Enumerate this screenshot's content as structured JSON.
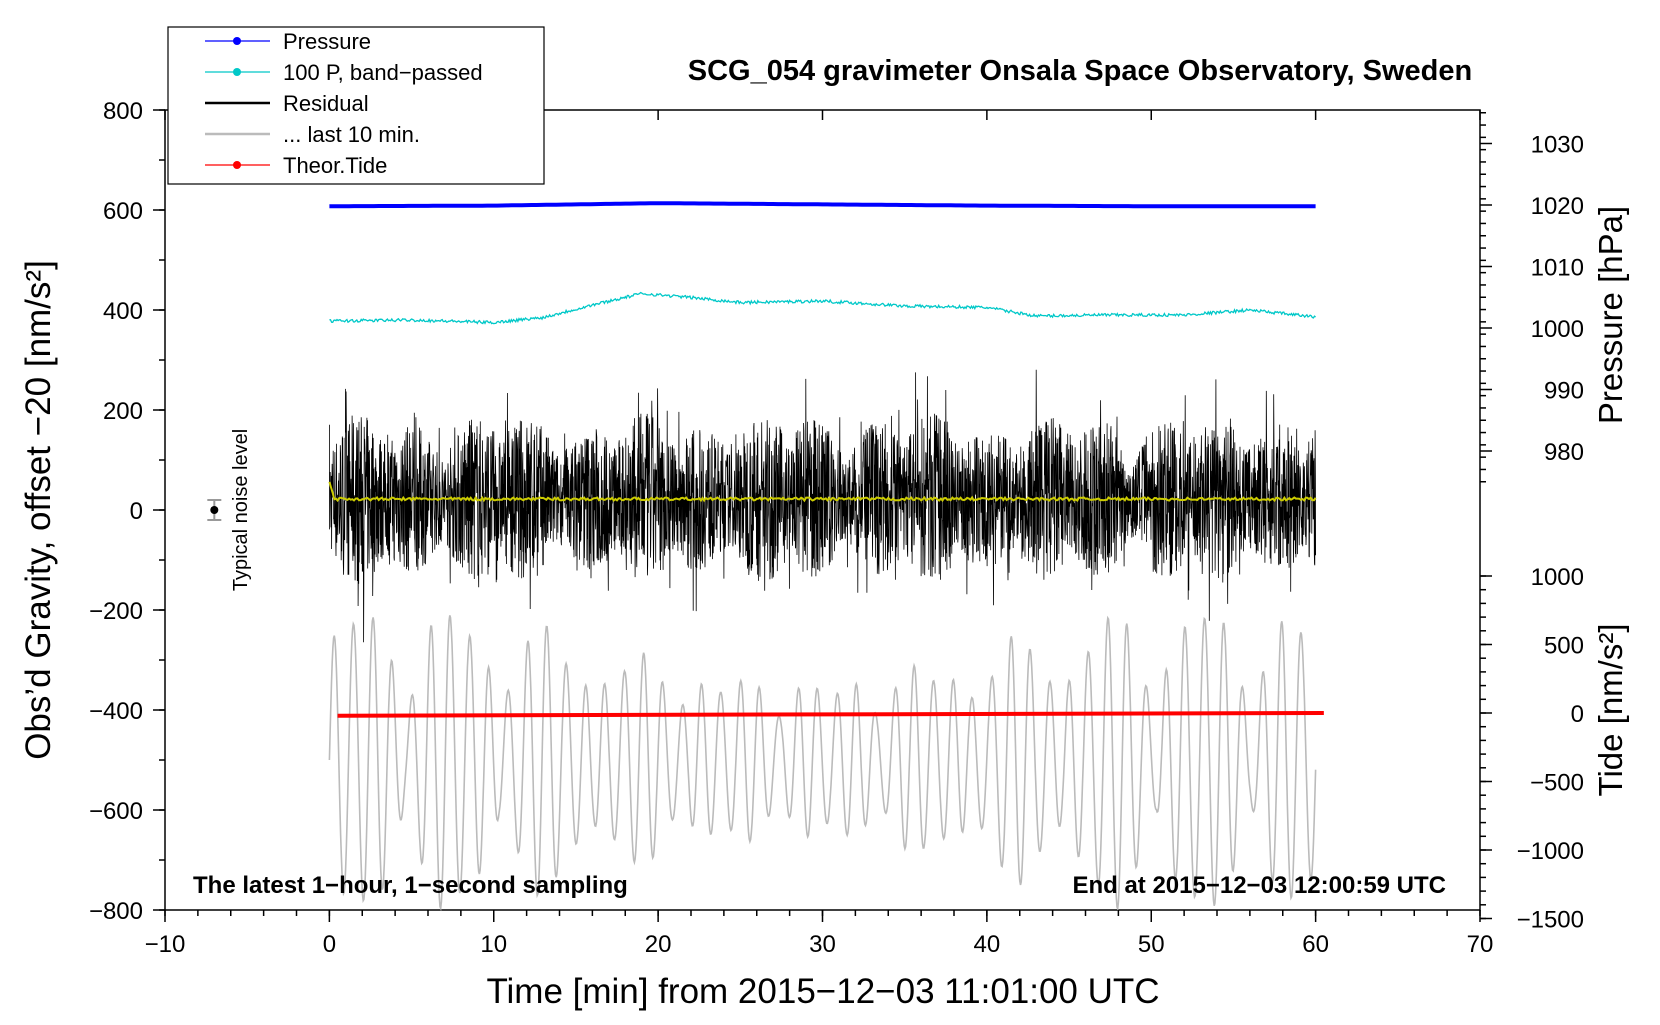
{
  "chart_data": {
    "type": "line",
    "title": "SCG_054 gravimeter Onsala Space Observatory, Sweden",
    "xlabel": "Time [min] from 2015−12−03 11:01:00 UTC",
    "ylabel_left": "Obs’d Gravity, offset −20 [nm/s²]",
    "ylabel_pressure": "Pressure [hPa]",
    "ylabel_tide": "Tide [nm/s²]",
    "xlim": [
      -10,
      70
    ],
    "ylim": [
      -800,
      800
    ],
    "x_ticks": [
      -10,
      0,
      10,
      20,
      30,
      40,
      50,
      60,
      70
    ],
    "x_tick_labels": [
      "−10",
      "0",
      "10",
      "20",
      "30",
      "40",
      "50",
      "60",
      "70"
    ],
    "y_ticks": [
      -800,
      -600,
      -400,
      -200,
      0,
      200,
      400,
      600,
      800
    ],
    "y_tick_labels": [
      "−800",
      "−600",
      "−400",
      "−200",
      "0",
      "200",
      "400",
      "600",
      "800"
    ],
    "pressure_axis": {
      "ticks": [
        980,
        990,
        1000,
        1010,
        1020,
        1030
      ],
      "tick_labels": [
        "980",
        "990",
        "1000",
        "1010",
        "1020",
        "1030"
      ]
    },
    "tide_axis": {
      "ticks": [
        -1500,
        -1000,
        -500,
        0,
        500,
        1000
      ],
      "tick_labels": [
        "−1500",
        "−1000",
        "−500",
        "0",
        "500",
        "1000"
      ]
    },
    "legend": {
      "placement": "top-left",
      "entries": [
        {
          "label": "Pressure",
          "color": "#0000ff",
          "marker": true
        },
        {
          "label": "100 P, band−passed",
          "color": "#00c8c8",
          "marker": true
        },
        {
          "label": "Residual",
          "color": "#000000",
          "marker": false
        },
        {
          "label": "... last 10 min.",
          "color": "#bbbbbb",
          "marker": false
        },
        {
          "label": "Theor.Tide",
          "color": "#ff0000",
          "marker": true
        }
      ]
    },
    "annotations": {
      "noise": "Typical noise level",
      "bottom_left": "The latest 1−hour, 1−second sampling",
      "bottom_right": "End at 2015−12−03 12:00:59 UTC"
    },
    "noise_marker": {
      "x": -7,
      "y": 0,
      "err": 20
    },
    "series": [
      {
        "name": "Pressure",
        "axis": "pressure",
        "color": "#0000ff",
        "x": [
          0,
          10,
          20,
          30,
          40,
          50,
          60
        ],
        "values": [
          1019.8,
          1019.9,
          1020.3,
          1020.1,
          1019.9,
          1019.8,
          1019.8
        ]
      },
      {
        "name": "100 P, band-passed",
        "axis": "left",
        "color": "#00c8c8",
        "x": [
          0,
          5,
          10,
          13,
          16,
          19,
          22,
          25,
          30,
          35,
          40,
          43,
          47,
          52,
          56,
          60
        ],
        "values": [
          378,
          380,
          375,
          385,
          410,
          433,
          425,
          415,
          418,
          408,
          405,
          388,
          390,
          390,
          400,
          386
        ]
      },
      {
        "name": "Residual",
        "axis": "left",
        "color": "#000000",
        "x": [
          0,
          60
        ],
        "values": [
          0,
          0
        ],
        "amplitude": 300
      },
      {
        "name": "Residual smoothed",
        "axis": "left",
        "color": "#cccc00",
        "x": [
          0,
          60
        ],
        "values": [
          22,
          22
        ]
      },
      {
        "name": "Theor.Tide",
        "axis": "tide",
        "color": "#ff0000",
        "x": [
          0.5,
          60.5
        ],
        "values": [
          -20,
          0
        ]
      },
      {
        "name": "... last 10 min.",
        "axis": "left",
        "color": "#bbbbbb",
        "x": [
          0,
          60
        ],
        "values": [
          -500,
          -500
        ],
        "amplitude": 300
      }
    ]
  }
}
